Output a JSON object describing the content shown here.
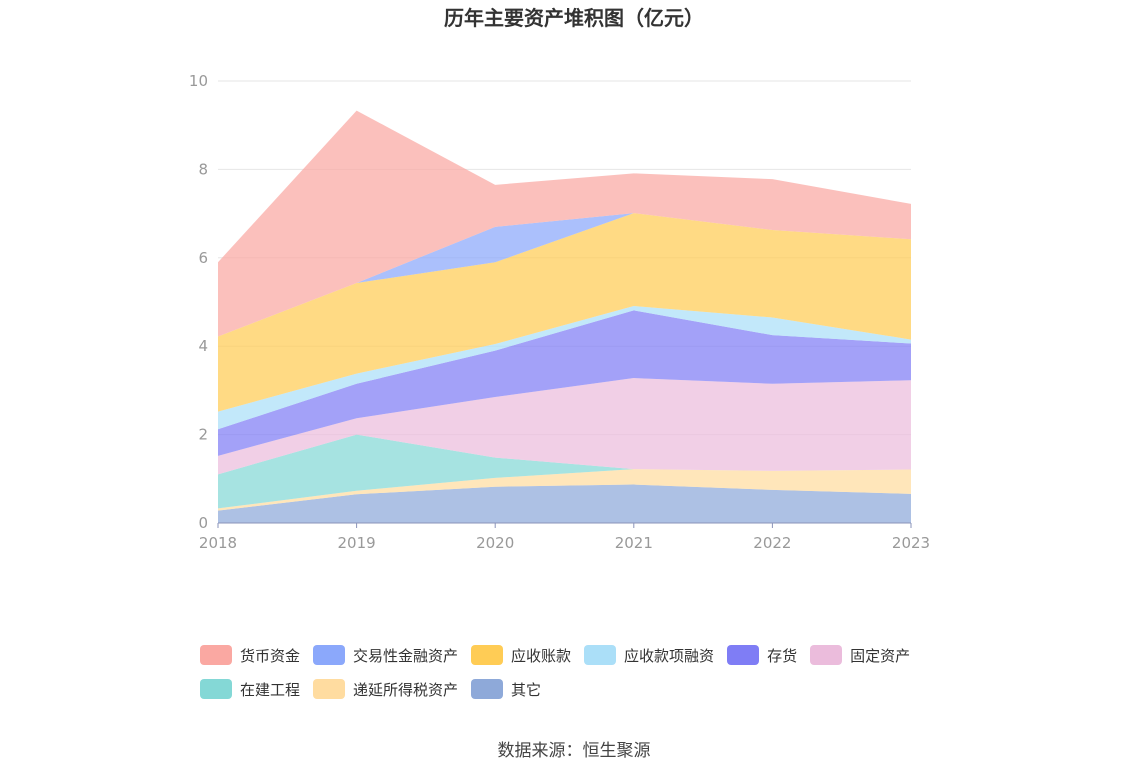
{
  "chart_data": {
    "type": "area",
    "stacked": true,
    "title": "历年主要资产堆积图（亿元）",
    "x": [
      "2018",
      "2019",
      "2020",
      "2021",
      "2022",
      "2023"
    ],
    "ylim": [
      0,
      10
    ],
    "yticks": [
      0,
      2,
      4,
      6,
      8,
      10
    ],
    "grid": true,
    "legend_position": "bottom",
    "series": [
      {
        "name": "其它",
        "color": "#8EA9D9",
        "values": [
          0.28,
          0.65,
          0.82,
          0.87,
          0.75,
          0.66
        ]
      },
      {
        "name": "递延所得税资产",
        "color": "#FFDCA0",
        "values": [
          0.05,
          0.08,
          0.2,
          0.35,
          0.43,
          0.55
        ]
      },
      {
        "name": "在建工程",
        "color": "#84D8D6",
        "values": [
          0.77,
          1.27,
          0.46,
          0.0,
          0.0,
          0.0
        ]
      },
      {
        "name": "固定资产",
        "color": "#EBBCDC",
        "values": [
          0.42,
          0.37,
          1.37,
          2.06,
          1.97,
          2.02
        ]
      },
      {
        "name": "存货",
        "color": "#7F7DF5",
        "values": [
          0.6,
          0.78,
          1.05,
          1.53,
          1.1,
          0.83
        ]
      },
      {
        "name": "应收款项融资",
        "color": "#ABDFF8",
        "values": [
          0.4,
          0.23,
          0.15,
          0.1,
          0.4,
          0.09
        ]
      },
      {
        "name": "应收账款",
        "color": "#FFCC55",
        "values": [
          1.7,
          2.05,
          1.85,
          2.1,
          1.98,
          2.27
        ]
      },
      {
        "name": "交易性金融资产",
        "color": "#8BA8FB",
        "values": [
          0.0,
          0.0,
          0.8,
          0.0,
          0.0,
          0.0
        ]
      },
      {
        "name": "货币资金",
        "color": "#FAA8A2",
        "values": [
          1.68,
          3.9,
          0.95,
          0.9,
          1.15,
          0.8
        ]
      }
    ]
  },
  "legend_order": [
    "货币资金",
    "交易性金融资产",
    "应收账款",
    "应收款项融资",
    "存货",
    "固定资产",
    "在建工程",
    "递延所得税资产",
    "其它"
  ],
  "source": "数据来源：恒生聚源"
}
